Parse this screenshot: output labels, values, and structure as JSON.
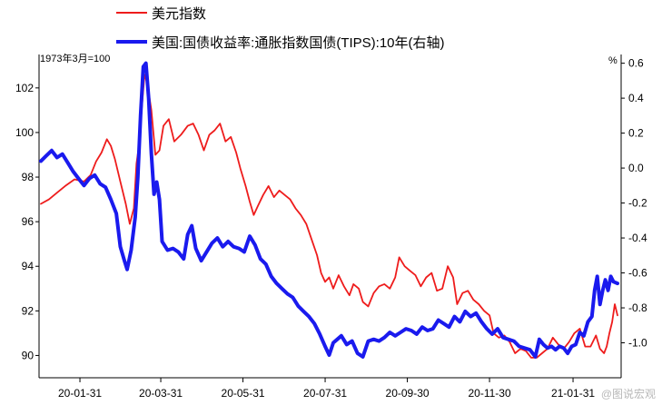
{
  "chart_data": {
    "type": "line",
    "legend": [
      {
        "name": "美元指数",
        "color": "#ee1c1c"
      },
      {
        "name": "美国:国债收益率:通胀指数国债(TIPS):10年(右轴)",
        "color": "#1a1aee"
      }
    ],
    "left_axis": {
      "unit": "1973年3月=100",
      "range": [
        89,
        103.5
      ],
      "ticks": [
        90,
        92,
        94,
        96,
        98,
        100,
        102
      ]
    },
    "right_axis": {
      "unit": "%",
      "range": [
        -1.2,
        0.65
      ],
      "ticks": [
        -1.0,
        -0.8,
        -0.6,
        -0.4,
        -0.2,
        0.0,
        0.2,
        0.4,
        0.6
      ],
      "tick_labels": [
        "-1.0",
        "-0.8",
        "-0.6",
        "-0.4",
        "-0.2",
        "0.0",
        "0.2",
        "0.4",
        "0.6"
      ]
    },
    "x_axis": {
      "start": "2020-01-02",
      "end": "2021-03-05",
      "tick_dates": [
        "2020-01-31",
        "2020-03-31",
        "2020-05-31",
        "2020-07-31",
        "2020-09-30",
        "2020-11-30",
        "2021-01-31"
      ],
      "tick_labels": [
        "20-01-31",
        "20-03-31",
        "20-05-31",
        "20-07-31",
        "20-09-30",
        "20-11-30",
        "21-01-31"
      ]
    },
    "series": [
      {
        "name": "美元指数",
        "axis": "left",
        "color": "#ee1c1c",
        "points": [
          [
            "2020-01-02",
            96.8
          ],
          [
            "2020-01-08",
            97.0
          ],
          [
            "2020-01-14",
            97.3
          ],
          [
            "2020-01-20",
            97.6
          ],
          [
            "2020-01-27",
            97.9
          ],
          [
            "2020-02-03",
            97.8
          ],
          [
            "2020-02-08",
            98.1
          ],
          [
            "2020-02-12",
            98.7
          ],
          [
            "2020-02-16",
            99.1
          ],
          [
            "2020-02-20",
            99.7
          ],
          [
            "2020-02-23",
            99.4
          ],
          [
            "2020-02-26",
            98.8
          ],
          [
            "2020-03-01",
            97.8
          ],
          [
            "2020-03-05",
            96.8
          ],
          [
            "2020-03-08",
            95.9
          ],
          [
            "2020-03-11",
            96.6
          ],
          [
            "2020-03-13",
            98.6
          ],
          [
            "2020-03-15",
            99.5
          ],
          [
            "2020-03-17",
            101.2
          ],
          [
            "2020-03-19",
            102.6
          ],
          [
            "2020-03-21",
            102.2
          ],
          [
            "2020-03-24",
            101.0
          ],
          [
            "2020-03-27",
            99.0
          ],
          [
            "2020-03-30",
            99.2
          ],
          [
            "2020-04-02",
            100.3
          ],
          [
            "2020-04-06",
            100.6
          ],
          [
            "2020-04-10",
            99.6
          ],
          [
            "2020-04-15",
            99.9
          ],
          [
            "2020-04-20",
            100.3
          ],
          [
            "2020-04-24",
            100.4
          ],
          [
            "2020-04-28",
            99.9
          ],
          [
            "2020-05-02",
            99.2
          ],
          [
            "2020-05-06",
            99.9
          ],
          [
            "2020-05-10",
            100.1
          ],
          [
            "2020-05-14",
            100.4
          ],
          [
            "2020-05-18",
            99.6
          ],
          [
            "2020-05-22",
            99.8
          ],
          [
            "2020-05-26",
            99.1
          ],
          [
            "2020-05-29",
            98.4
          ],
          [
            "2020-06-02",
            97.6
          ],
          [
            "2020-06-05",
            96.9
          ],
          [
            "2020-06-08",
            96.3
          ],
          [
            "2020-06-11",
            96.7
          ],
          [
            "2020-06-15",
            97.2
          ],
          [
            "2020-06-19",
            97.6
          ],
          [
            "2020-06-23",
            97.1
          ],
          [
            "2020-06-27",
            97.4
          ],
          [
            "2020-07-01",
            97.2
          ],
          [
            "2020-07-05",
            97.0
          ],
          [
            "2020-07-09",
            96.6
          ],
          [
            "2020-07-13",
            96.3
          ],
          [
            "2020-07-17",
            95.9
          ],
          [
            "2020-07-21",
            95.2
          ],
          [
            "2020-07-25",
            94.5
          ],
          [
            "2020-07-28",
            93.7
          ],
          [
            "2020-07-31",
            93.3
          ],
          [
            "2020-08-03",
            93.5
          ],
          [
            "2020-08-06",
            93.0
          ],
          [
            "2020-08-10",
            93.6
          ],
          [
            "2020-08-14",
            93.1
          ],
          [
            "2020-08-18",
            92.7
          ],
          [
            "2020-08-21",
            93.2
          ],
          [
            "2020-08-25",
            93.0
          ],
          [
            "2020-08-28",
            92.4
          ],
          [
            "2020-09-01",
            92.2
          ],
          [
            "2020-09-05",
            92.8
          ],
          [
            "2020-09-09",
            93.1
          ],
          [
            "2020-09-13",
            93.2
          ],
          [
            "2020-09-17",
            93.0
          ],
          [
            "2020-09-21",
            93.5
          ],
          [
            "2020-09-24",
            94.4
          ],
          [
            "2020-09-28",
            94.0
          ],
          [
            "2020-10-02",
            93.8
          ],
          [
            "2020-10-06",
            93.6
          ],
          [
            "2020-10-10",
            93.1
          ],
          [
            "2020-10-14",
            93.5
          ],
          [
            "2020-10-18",
            93.7
          ],
          [
            "2020-10-22",
            92.9
          ],
          [
            "2020-10-26",
            93.0
          ],
          [
            "2020-10-30",
            94.0
          ],
          [
            "2020-11-03",
            93.5
          ],
          [
            "2020-11-06",
            92.3
          ],
          [
            "2020-11-10",
            92.8
          ],
          [
            "2020-11-14",
            92.9
          ],
          [
            "2020-11-18",
            92.5
          ],
          [
            "2020-11-22",
            92.3
          ],
          [
            "2020-11-26",
            92.0
          ],
          [
            "2020-11-30",
            91.8
          ],
          [
            "2020-12-03",
            91.0
          ],
          [
            "2020-12-07",
            90.8
          ],
          [
            "2020-12-11",
            90.9
          ],
          [
            "2020-12-15",
            90.6
          ],
          [
            "2020-12-19",
            90.1
          ],
          [
            "2020-12-23",
            90.3
          ],
          [
            "2020-12-27",
            90.2
          ],
          [
            "2020-12-31",
            89.9
          ],
          [
            "2021-01-04",
            89.9
          ],
          [
            "2021-01-08",
            90.1
          ],
          [
            "2021-01-12",
            90.3
          ],
          [
            "2021-01-16",
            90.8
          ],
          [
            "2021-01-20",
            90.5
          ],
          [
            "2021-01-24",
            90.3
          ],
          [
            "2021-01-28",
            90.6
          ],
          [
            "2021-02-01",
            91.0
          ],
          [
            "2021-02-05",
            91.2
          ],
          [
            "2021-02-09",
            90.4
          ],
          [
            "2021-02-13",
            90.4
          ],
          [
            "2021-02-17",
            90.9
          ],
          [
            "2021-02-20",
            90.3
          ],
          [
            "2021-02-23",
            90.1
          ],
          [
            "2021-02-25",
            90.4
          ],
          [
            "2021-02-27",
            91.0
          ],
          [
            "2021-03-01",
            91.5
          ],
          [
            "2021-03-03",
            92.3
          ],
          [
            "2021-03-05",
            91.8
          ]
        ]
      },
      {
        "name": "美国:国债收益率:通胀指数国债(TIPS):10年(右轴)",
        "axis": "right",
        "color": "#1a1aee",
        "points": [
          [
            "2020-01-02",
            0.04
          ],
          [
            "2020-01-06",
            0.07
          ],
          [
            "2020-01-10",
            0.1
          ],
          [
            "2020-01-14",
            0.06
          ],
          [
            "2020-01-18",
            0.08
          ],
          [
            "2020-01-22",
            0.03
          ],
          [
            "2020-01-26",
            -0.02
          ],
          [
            "2020-01-30",
            -0.06
          ],
          [
            "2020-02-03",
            -0.1
          ],
          [
            "2020-02-07",
            -0.06
          ],
          [
            "2020-02-11",
            -0.04
          ],
          [
            "2020-02-15",
            -0.09
          ],
          [
            "2020-02-19",
            -0.11
          ],
          [
            "2020-02-23",
            -0.18
          ],
          [
            "2020-02-27",
            -0.26
          ],
          [
            "2020-03-01",
            -0.45
          ],
          [
            "2020-03-04",
            -0.53
          ],
          [
            "2020-03-06",
            -0.58
          ],
          [
            "2020-03-09",
            -0.47
          ],
          [
            "2020-03-12",
            -0.28
          ],
          [
            "2020-03-14",
            -0.05
          ],
          [
            "2020-03-16",
            0.3
          ],
          [
            "2020-03-18",
            0.58
          ],
          [
            "2020-03-20",
            0.6
          ],
          [
            "2020-03-22",
            0.4
          ],
          [
            "2020-03-24",
            0.08
          ],
          [
            "2020-03-26",
            -0.15
          ],
          [
            "2020-03-28",
            -0.08
          ],
          [
            "2020-03-30",
            -0.18
          ],
          [
            "2020-04-01",
            -0.42
          ],
          [
            "2020-04-05",
            -0.47
          ],
          [
            "2020-04-09",
            -0.46
          ],
          [
            "2020-04-13",
            -0.48
          ],
          [
            "2020-04-17",
            -0.52
          ],
          [
            "2020-04-20",
            -0.38
          ],
          [
            "2020-04-23",
            -0.33
          ],
          [
            "2020-04-26",
            -0.46
          ],
          [
            "2020-04-30",
            -0.53
          ],
          [
            "2020-05-04",
            -0.48
          ],
          [
            "2020-05-08",
            -0.43
          ],
          [
            "2020-05-12",
            -0.4
          ],
          [
            "2020-05-16",
            -0.45
          ],
          [
            "2020-05-20",
            -0.42
          ],
          [
            "2020-05-24",
            -0.45
          ],
          [
            "2020-05-28",
            -0.46
          ],
          [
            "2020-06-01",
            -0.48
          ],
          [
            "2020-06-05",
            -0.39
          ],
          [
            "2020-06-09",
            -0.44
          ],
          [
            "2020-06-13",
            -0.52
          ],
          [
            "2020-06-17",
            -0.55
          ],
          [
            "2020-06-21",
            -0.62
          ],
          [
            "2020-06-25",
            -0.66
          ],
          [
            "2020-06-29",
            -0.69
          ],
          [
            "2020-07-03",
            -0.72
          ],
          [
            "2020-07-07",
            -0.74
          ],
          [
            "2020-07-11",
            -0.79
          ],
          [
            "2020-07-15",
            -0.82
          ],
          [
            "2020-07-19",
            -0.85
          ],
          [
            "2020-07-23",
            -0.89
          ],
          [
            "2020-07-27",
            -0.95
          ],
          [
            "2020-07-31",
            -1.02
          ],
          [
            "2020-08-03",
            -1.07
          ],
          [
            "2020-08-06",
            -1.0
          ],
          [
            "2020-08-09",
            -0.98
          ],
          [
            "2020-08-12",
            -0.96
          ],
          [
            "2020-08-16",
            -1.01
          ],
          [
            "2020-08-20",
            -0.99
          ],
          [
            "2020-08-24",
            -1.06
          ],
          [
            "2020-08-28",
            -1.08
          ],
          [
            "2020-09-01",
            -0.99
          ],
          [
            "2020-09-05",
            -0.98
          ],
          [
            "2020-09-09",
            -0.99
          ],
          [
            "2020-09-13",
            -0.97
          ],
          [
            "2020-09-17",
            -0.94
          ],
          [
            "2020-09-21",
            -0.96
          ],
          [
            "2020-09-25",
            -0.94
          ],
          [
            "2020-09-29",
            -0.92
          ],
          [
            "2020-10-03",
            -0.93
          ],
          [
            "2020-10-07",
            -0.95
          ],
          [
            "2020-10-11",
            -0.91
          ],
          [
            "2020-10-15",
            -0.93
          ],
          [
            "2020-10-19",
            -0.92
          ],
          [
            "2020-10-23",
            -0.87
          ],
          [
            "2020-10-27",
            -0.89
          ],
          [
            "2020-10-31",
            -0.91
          ],
          [
            "2020-11-04",
            -0.85
          ],
          [
            "2020-11-08",
            -0.88
          ],
          [
            "2020-11-12",
            -0.82
          ],
          [
            "2020-11-16",
            -0.85
          ],
          [
            "2020-11-20",
            -0.83
          ],
          [
            "2020-11-24",
            -0.88
          ],
          [
            "2020-11-28",
            -0.92
          ],
          [
            "2020-12-02",
            -0.95
          ],
          [
            "2020-12-06",
            -0.92
          ],
          [
            "2020-12-10",
            -0.97
          ],
          [
            "2020-12-14",
            -0.98
          ],
          [
            "2020-12-18",
            -0.99
          ],
          [
            "2020-12-22",
            -1.02
          ],
          [
            "2020-12-26",
            -1.03
          ],
          [
            "2020-12-30",
            -1.04
          ],
          [
            "2021-01-03",
            -1.08
          ],
          [
            "2021-01-06",
            -0.98
          ],
          [
            "2021-01-09",
            -1.01
          ],
          [
            "2021-01-12",
            -1.03
          ],
          [
            "2021-01-15",
            -1.02
          ],
          [
            "2021-01-18",
            -1.04
          ],
          [
            "2021-01-21",
            -1.02
          ],
          [
            "2021-01-24",
            -1.03
          ],
          [
            "2021-01-27",
            -1.06
          ],
          [
            "2021-01-30",
            -1.02
          ],
          [
            "2021-02-02",
            -1.01
          ],
          [
            "2021-02-05",
            -0.94
          ],
          [
            "2021-02-08",
            -0.96
          ],
          [
            "2021-02-11",
            -0.88
          ],
          [
            "2021-02-14",
            -0.85
          ],
          [
            "2021-02-16",
            -0.7
          ],
          [
            "2021-02-18",
            -0.62
          ],
          [
            "2021-02-20",
            -0.78
          ],
          [
            "2021-02-22",
            -0.7
          ],
          [
            "2021-02-24",
            -0.64
          ],
          [
            "2021-02-26",
            -0.7
          ],
          [
            "2021-02-28",
            -0.62
          ],
          [
            "2021-03-02",
            -0.65
          ],
          [
            "2021-03-05",
            -0.66
          ]
        ]
      }
    ],
    "grid": false,
    "legend_position": "top-left"
  },
  "watermark": "@图说宏观"
}
